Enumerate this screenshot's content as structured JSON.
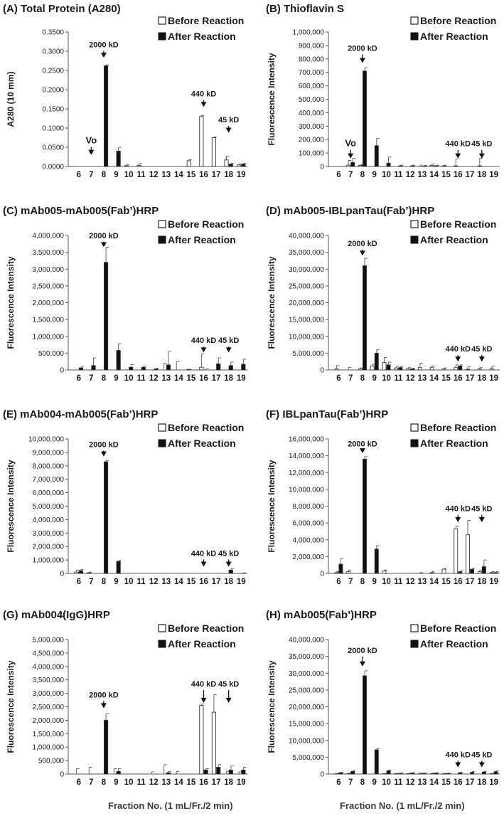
{
  "figure": {
    "x_axis_label": "Fraction No. (1 mL/Fr./2 min)",
    "legend": {
      "before": "Before Reaction",
      "after": "After Reaction"
    },
    "fractions": [
      "6",
      "7",
      "8",
      "9",
      "10",
      "11",
      "12",
      "13",
      "14",
      "15",
      "16",
      "17",
      "18",
      "19"
    ]
  },
  "chart_data": [
    {
      "type": "bar",
      "id": "A",
      "title": "(A) Total Protein (A280)",
      "ylabel": "A280 (10 mm)",
      "ylim": [
        0,
        0.35
      ],
      "ystep": 0.05,
      "yticks": [
        "0.0000",
        "0.0500",
        "0.1000",
        "0.1500",
        "0.2000",
        "0.2500",
        "0.3000",
        "0.3500"
      ],
      "categories": [
        "6",
        "7",
        "8",
        "9",
        "10",
        "11",
        "12",
        "13",
        "14",
        "15",
        "16",
        "17",
        "18",
        "19"
      ],
      "series": [
        {
          "name": "Before Reaction",
          "values": [
            0,
            0,
            0,
            0,
            0.002,
            0.003,
            0,
            0,
            0,
            0.015,
            0.13,
            0.075,
            0.017,
            0.004
          ],
          "errors": [
            0,
            0,
            0,
            0,
            0.003,
            0.005,
            0,
            0,
            0,
            0.003,
            0.003,
            0.002,
            0.01,
            0.002
          ]
        },
        {
          "name": "After Reaction",
          "values": [
            0,
            0,
            0.262,
            0.04,
            0,
            0,
            0,
            0,
            0,
            0,
            0,
            0,
            0.006,
            0.006
          ],
          "errors": [
            0,
            0,
            0.002,
            0.01,
            0,
            0,
            0,
            0,
            0,
            0,
            0,
            0,
            0.002,
            0.002
          ]
        }
      ],
      "annotations": [
        {
          "text": "Vo",
          "fraction": "7",
          "arrow_top": 0.03,
          "label_top": 0.06
        },
        {
          "text": "2000 kD",
          "fraction": "8",
          "arrow_top": 0.283,
          "label_top": 0.31
        },
        {
          "text": "440 kD",
          "fraction": "16",
          "arrow_top": 0.155,
          "label_top": 0.182
        },
        {
          "text": "45 kD",
          "fraction": "18",
          "arrow_top": 0.088,
          "label_top": 0.115
        }
      ]
    },
    {
      "type": "bar",
      "id": "B",
      "title": "(B) Thioflavin S",
      "ylabel": "Fluorescence Intensity",
      "ylim": [
        0,
        1000000
      ],
      "ystep": 100000,
      "yticks": [
        "0",
        "100,000",
        "200,000",
        "300,000",
        "400,000",
        "500,000",
        "600,000",
        "700,000",
        "800,000",
        "900,000",
        "1,000,000"
      ],
      "categories": [
        "6",
        "7",
        "8",
        "9",
        "10",
        "11",
        "12",
        "13",
        "14",
        "15",
        "16",
        "17",
        "18",
        "19"
      ],
      "series": [
        {
          "name": "Before Reaction",
          "values": [
            0,
            10000,
            8000,
            0,
            0,
            0,
            0,
            0,
            8000,
            5000,
            5000,
            0,
            5000,
            0
          ],
          "errors": [
            0,
            35000,
            5000,
            0,
            0,
            0,
            0,
            10000,
            10000,
            5000,
            50000,
            0,
            55000,
            0
          ]
        },
        {
          "name": "After Reaction",
          "values": [
            0,
            30000,
            710000,
            155000,
            25000,
            5000,
            5000,
            3000,
            5000,
            0,
            0,
            0,
            0,
            0
          ],
          "errors": [
            0,
            30000,
            25000,
            55000,
            45000,
            5000,
            5000,
            5000,
            5000,
            0,
            0,
            0,
            0,
            0
          ]
        }
      ],
      "annotations": [
        {
          "text": "Vo",
          "fraction": "7",
          "arrow_top": 60000,
          "label_top": 150000
        },
        {
          "text": "2000 kD",
          "fraction": "8",
          "arrow_top": 770000,
          "label_top": 860000
        },
        {
          "text": "440 kD",
          "fraction": "16",
          "arrow_top": 60000,
          "label_top": 150000
        },
        {
          "text": "45 kD",
          "fraction": "18",
          "arrow_top": 60000,
          "label_top": 150000
        }
      ]
    },
    {
      "type": "bar",
      "id": "C",
      "title": "(C) mAb005-mAb005(Fab’)HRP",
      "ylabel": "Fluorescence Intensity",
      "ylim": [
        0,
        4000000
      ],
      "ystep": 500000,
      "yticks": [
        "0",
        "500,000",
        "1,000,000",
        "1,500,000",
        "2,000,000",
        "2,500,000",
        "3,000,000",
        "3,500,000",
        "4,000,000"
      ],
      "categories": [
        "6",
        "7",
        "8",
        "9",
        "10",
        "11",
        "12",
        "13",
        "14",
        "15",
        "16",
        "17",
        "18",
        "19"
      ],
      "series": [
        {
          "name": "Before Reaction",
          "values": [
            0,
            0,
            0,
            0,
            0,
            0,
            0,
            0,
            0,
            20000,
            80000,
            0,
            0,
            0
          ],
          "errors": [
            0,
            0,
            0,
            0,
            0,
            0,
            0,
            200000,
            250000,
            0,
            400000,
            0,
            0,
            0
          ]
        },
        {
          "name": "After Reaction",
          "values": [
            60000,
            130000,
            3200000,
            580000,
            80000,
            80000,
            30000,
            150000,
            0,
            0,
            0,
            180000,
            130000,
            170000
          ],
          "errors": [
            30000,
            230000,
            450000,
            200000,
            80000,
            40000,
            20000,
            400000,
            0,
            0,
            30000,
            180000,
            100000,
            150000
          ]
        }
      ],
      "annotations": [
        {
          "text": "2000 kD",
          "fraction": "8",
          "arrow_top": 3650000,
          "label_top": 3920000
        },
        {
          "text": "440 kD",
          "fraction": "16",
          "arrow_top": 520000,
          "label_top": 800000
        },
        {
          "text": "45 kD",
          "fraction": "18",
          "arrow_top": 520000,
          "label_top": 800000
        }
      ]
    },
    {
      "type": "bar",
      "id": "D",
      "title": "(D) mAb005-IBLpanTau(Fab’)HRP",
      "ylabel": "Fluorescence Intensity",
      "ylim": [
        0,
        40000000
      ],
      "ystep": 5000000,
      "yticks": [
        "0",
        "5,000,000",
        "10,000,000",
        "15,000,000",
        "20,000,000",
        "25,000,000",
        "30,000,000",
        "35,000,000",
        "40,000,000"
      ],
      "categories": [
        "6",
        "7",
        "8",
        "9",
        "10",
        "11",
        "12",
        "13",
        "14",
        "15",
        "16",
        "17",
        "18",
        "19"
      ],
      "series": [
        {
          "name": "Before Reaction",
          "values": [
            300000,
            0,
            300000,
            1200000,
            2200000,
            600000,
            300000,
            700000,
            800000,
            300000,
            700000,
            200000,
            300000,
            300000
          ],
          "errors": [
            1000000,
            800000,
            300000,
            500000,
            1500000,
            500000,
            400000,
            1300000,
            400000,
            300000,
            800000,
            800000,
            400000,
            600000
          ]
        },
        {
          "name": "After Reaction",
          "values": [
            0,
            0,
            31000000,
            5000000,
            1500000,
            700000,
            300000,
            0,
            0,
            0,
            1200000,
            0,
            0,
            0
          ],
          "errors": [
            0,
            0,
            2200000,
            1000000,
            800000,
            300000,
            200000,
            0,
            0,
            0,
            300000,
            0,
            0,
            0
          ]
        }
      ],
      "annotations": [
        {
          "text": "2000 kD",
          "fraction": "8",
          "arrow_top": 34000000,
          "label_top": 36800000
        },
        {
          "text": "440 kD",
          "fraction": "16",
          "arrow_top": 2500000,
          "label_top": 5500000
        },
        {
          "text": "45 kD",
          "fraction": "18",
          "arrow_top": 2500000,
          "label_top": 5500000
        }
      ]
    },
    {
      "type": "bar",
      "id": "E",
      "title": "(E) mAb004-mAb005(Fab’)HRP",
      "ylabel": "Fluorescence Intensity",
      "ylim": [
        0,
        10000000
      ],
      "ystep": 1000000,
      "yticks": [
        "0",
        "1,000,000",
        "2,000,000",
        "3,000,000",
        "4,000,000",
        "5,000,000",
        "6,000,000",
        "7,000,000",
        "8,000,000",
        "9,000,000",
        "10,000,000"
      ],
      "categories": [
        "6",
        "7",
        "8",
        "9",
        "10",
        "11",
        "12",
        "13",
        "14",
        "15",
        "16",
        "17",
        "18",
        "19"
      ],
      "series": [
        {
          "name": "Before Reaction",
          "values": [
            100000,
            50000,
            0,
            0,
            0,
            0,
            0,
            0,
            0,
            0,
            0,
            0,
            0,
            0
          ],
          "errors": [
            150000,
            50000,
            0,
            0,
            0,
            0,
            0,
            0,
            0,
            0,
            0,
            0,
            0,
            0
          ]
        },
        {
          "name": "After Reaction",
          "values": [
            200000,
            0,
            8300000,
            900000,
            0,
            0,
            0,
            0,
            0,
            0,
            0,
            0,
            250000,
            20000
          ],
          "errors": [
            100000,
            0,
            100000,
            50000,
            0,
            0,
            0,
            0,
            0,
            0,
            0,
            0,
            100000,
            20000
          ]
        }
      ],
      "annotations": [
        {
          "text": "2000 kD",
          "fraction": "8",
          "arrow_top": 8700000,
          "label_top": 9400000
        },
        {
          "text": "440 kD",
          "fraction": "16",
          "arrow_top": 500000,
          "label_top": 1300000
        },
        {
          "text": "45 kD",
          "fraction": "18",
          "arrow_top": 500000,
          "label_top": 1300000
        }
      ]
    },
    {
      "type": "bar",
      "id": "F",
      "title": "(F) IBLpanTau(Fab’)HRP",
      "ylabel": "Fluorescence Intensity",
      "ylim": [
        0,
        16000000
      ],
      "ystep": 2000000,
      "yticks": [
        "0",
        "2,000,000",
        "4,000,000",
        "6,000,000",
        "8,000,000",
        "10,000,000",
        "12,000,000",
        "14,000,000",
        "16,000,000"
      ],
      "categories": [
        "6",
        "7",
        "8",
        "9",
        "10",
        "11",
        "12",
        "13",
        "14",
        "15",
        "16",
        "17",
        "18",
        "19"
      ],
      "series": [
        {
          "name": "Before Reaction",
          "values": [
            100000,
            200000,
            0,
            0,
            300000,
            0,
            0,
            0,
            100000,
            500000,
            5300000,
            4600000,
            200000,
            100000
          ],
          "errors": [
            100000,
            200000,
            0,
            0,
            100000,
            0,
            0,
            100000,
            100000,
            100000,
            300000,
            1700000,
            200000,
            100000
          ]
        },
        {
          "name": "After Reaction",
          "values": [
            1100000,
            0,
            13600000,
            2900000,
            0,
            0,
            0,
            0,
            0,
            0,
            200000,
            500000,
            800000,
            100000
          ],
          "errors": [
            700000,
            0,
            300000,
            400000,
            0,
            0,
            0,
            0,
            0,
            0,
            100000,
            100000,
            800000,
            100000
          ]
        }
      ],
      "annotations": [
        {
          "text": "2000 kD",
          "fraction": "8",
          "arrow_top": 14300000,
          "label_top": 15100000
        },
        {
          "text": "440 kD",
          "fraction": "16",
          "arrow_top": 6100000,
          "label_top": 7400000
        },
        {
          "text": "45 kD",
          "fraction": "18",
          "arrow_top": 6100000,
          "label_top": 7400000
        }
      ]
    },
    {
      "type": "bar",
      "id": "G",
      "title": "(G) mAb004(IgG)HRP",
      "ylabel": "Fluorescence Intensity",
      "ylim": [
        0,
        5000000
      ],
      "ystep": 500000,
      "yticks": [
        "0",
        "500,000",
        "1,000,000",
        "1,500,000",
        "2,000,000",
        "2,500,000",
        "3,000,000",
        "3,500,000",
        "4,000,000",
        "4,500,000",
        "5,000,000"
      ],
      "categories": [
        "6",
        "7",
        "8",
        "9",
        "10",
        "11",
        "12",
        "13",
        "14",
        "15",
        "16",
        "17",
        "18",
        "19"
      ],
      "series": [
        {
          "name": "Before Reaction",
          "values": [
            0,
            0,
            0,
            0,
            0,
            0,
            0,
            0,
            0,
            0,
            2550000,
            2300000,
            0,
            0
          ],
          "errors": [
            200000,
            250000,
            0,
            200000,
            0,
            0,
            80000,
            350000,
            100000,
            0,
            50000,
            650000,
            100000,
            80000
          ]
        },
        {
          "name": "After Reaction",
          "values": [
            0,
            0,
            2000000,
            100000,
            0,
            0,
            0,
            50000,
            0,
            0,
            150000,
            250000,
            150000,
            150000
          ],
          "errors": [
            0,
            0,
            250000,
            100000,
            0,
            0,
            0,
            50000,
            0,
            0,
            50000,
            100000,
            150000,
            100000
          ]
        }
      ],
      "annotations": [
        {
          "text": "2000 kD",
          "fraction": "8",
          "arrow_top": 2450000,
          "label_top": 2850000
        },
        {
          "text": "440 kD",
          "fraction": "16",
          "arrow_top": 2650000,
          "label_top": 3250000
        },
        {
          "text": "45 kD",
          "fraction": "18",
          "arrow_top": 2650000,
          "label_top": 3250000
        }
      ]
    },
    {
      "type": "bar",
      "id": "H",
      "title": "(H) mAb005(Fab’)HRP",
      "ylabel": "Fluorescence Intensity",
      "ylim": [
        0,
        40000000
      ],
      "ystep": 5000000,
      "yticks": [
        "0",
        "5,000,000",
        "10,000,000",
        "15,000,000",
        "20,000,000",
        "25,000,000",
        "30,000,000",
        "35,000,000",
        "40,000,000"
      ],
      "categories": [
        "6",
        "7",
        "8",
        "9",
        "10",
        "11",
        "12",
        "13",
        "14",
        "15",
        "16",
        "17",
        "18",
        "19"
      ],
      "series": [
        {
          "name": "Before Reaction",
          "values": [
            100000,
            100000,
            0,
            0,
            100000,
            100000,
            100000,
            100000,
            100000,
            100000,
            0,
            0,
            0,
            100000
          ],
          "errors": [
            100000,
            200000,
            0,
            0,
            100000,
            100000,
            100000,
            200000,
            200000,
            100000,
            0,
            0,
            0,
            100000
          ]
        },
        {
          "name": "After Reaction",
          "values": [
            400000,
            800000,
            29200000,
            7200000,
            1000000,
            200000,
            300000,
            200000,
            300000,
            200000,
            400000,
            500000,
            600000,
            700000
          ],
          "errors": [
            100000,
            200000,
            1500000,
            300000,
            200000,
            100000,
            100000,
            100000,
            100000,
            100000,
            100000,
            200000,
            200000,
            300000
          ]
        }
      ],
      "annotations": [
        {
          "text": "2000 kD",
          "fraction": "8",
          "arrow_top": 32000000,
          "label_top": 36000000
        },
        {
          "text": "440 kD",
          "fraction": "16",
          "arrow_top": 2000000,
          "label_top": 5000000
        },
        {
          "text": "45 kD",
          "fraction": "18",
          "arrow_top": 2000000,
          "label_top": 5000000
        }
      ]
    }
  ]
}
